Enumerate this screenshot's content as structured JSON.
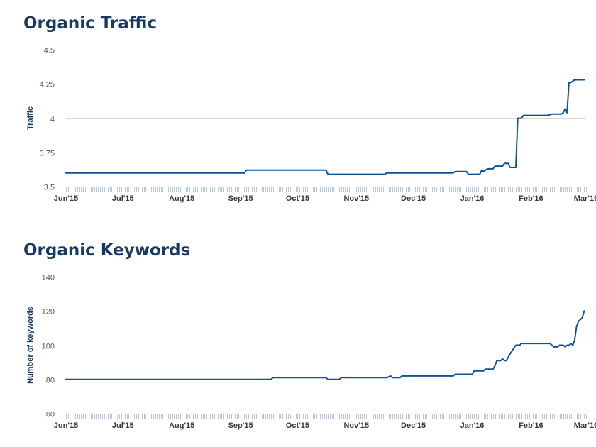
{
  "colors": {
    "title": "#163a63",
    "line": "#0b5394",
    "grid": "#d6d6d6"
  },
  "chart_data": [
    {
      "type": "line",
      "title": "Organic Traffic",
      "xlabel": "",
      "ylabel": "Traffic",
      "ylim": [
        3.5,
        4.5
      ],
      "yticks": [
        3.5,
        3.75,
        4,
        4.25,
        4.5
      ],
      "ytick_labels": [
        "3.5",
        "3.75",
        "4",
        "4.25",
        "4.5"
      ],
      "xlim": [
        "2015-06-01",
        "2016-03-01"
      ],
      "xticks": [
        {
          "date": "2015-06-01",
          "label": "Jun'15"
        },
        {
          "date": "2015-07-01",
          "label": "Jul'15"
        },
        {
          "date": "2015-08-01",
          "label": "Aug'15"
        },
        {
          "date": "2015-09-01",
          "label": "Sep'15"
        },
        {
          "date": "2015-10-01",
          "label": "Oct'15"
        },
        {
          "date": "2015-11-01",
          "label": "Nov'15"
        },
        {
          "date": "2015-12-01",
          "label": "Dec'15"
        },
        {
          "date": "2016-01-01",
          "label": "Jan'16"
        },
        {
          "date": "2016-02-01",
          "label": "Feb'16"
        },
        {
          "date": "2016-03-01",
          "label": "Mar'16"
        }
      ],
      "grid": true,
      "legend": "none",
      "series": [
        {
          "points": [
            [
              "2015-06-01",
              3.6
            ],
            [
              "2015-09-03",
              3.6
            ],
            [
              "2015-09-04",
              3.62
            ],
            [
              "2015-10-16",
              3.62
            ],
            [
              "2015-10-17",
              3.59
            ],
            [
              "2015-11-16",
              3.59
            ],
            [
              "2015-11-17",
              3.6
            ],
            [
              "2015-12-22",
              3.6
            ],
            [
              "2015-12-23",
              3.61
            ],
            [
              "2015-12-29",
              3.61
            ],
            [
              "2015-12-30",
              3.59
            ],
            [
              "2016-01-05",
              3.59
            ],
            [
              "2016-01-06",
              3.62
            ],
            [
              "2016-01-07",
              3.61
            ],
            [
              "2016-01-08",
              3.62
            ],
            [
              "2016-01-09",
              3.63
            ],
            [
              "2016-01-12",
              3.63
            ],
            [
              "2016-01-13",
              3.65
            ],
            [
              "2016-01-17",
              3.65
            ],
            [
              "2016-01-18",
              3.67
            ],
            [
              "2016-01-20",
              3.67
            ],
            [
              "2016-01-21",
              3.64
            ],
            [
              "2016-01-24",
              3.64
            ],
            [
              "2016-01-25",
              4.0
            ],
            [
              "2016-01-27",
              4.0
            ],
            [
              "2016-01-28",
              4.02
            ],
            [
              "2016-02-10",
              4.02
            ],
            [
              "2016-02-12",
              4.03
            ],
            [
              "2016-02-17",
              4.03
            ],
            [
              "2016-02-18",
              4.04
            ],
            [
              "2016-02-19",
              4.07
            ],
            [
              "2016-02-20",
              4.04
            ],
            [
              "2016-02-21",
              4.26
            ],
            [
              "2016-02-22",
              4.26
            ],
            [
              "2016-02-24",
              4.28
            ],
            [
              "2016-02-29",
              4.28
            ]
          ]
        }
      ]
    },
    {
      "type": "line",
      "title": "Organic Keywords",
      "xlabel": "",
      "ylabel": "Number of keywords",
      "ylim": [
        60,
        140
      ],
      "yticks": [
        60,
        80,
        100,
        120,
        140
      ],
      "ytick_labels": [
        "60",
        "80",
        "100",
        "120",
        "140"
      ],
      "xlim": [
        "2015-06-01",
        "2016-03-01"
      ],
      "xticks": [
        {
          "date": "2015-06-01",
          "label": "Jun'15"
        },
        {
          "date": "2015-07-01",
          "label": "Jul'15"
        },
        {
          "date": "2015-08-01",
          "label": "Aug'15"
        },
        {
          "date": "2015-09-01",
          "label": "Sep'15"
        },
        {
          "date": "2015-10-01",
          "label": "Oct'15"
        },
        {
          "date": "2015-11-01",
          "label": "Nov'15"
        },
        {
          "date": "2015-12-01",
          "label": "Dec'15"
        },
        {
          "date": "2016-01-01",
          "label": "Jan'16"
        },
        {
          "date": "2016-02-01",
          "label": "Feb'16"
        },
        {
          "date": "2016-03-01",
          "label": "Mar'16"
        }
      ],
      "grid": true,
      "legend": "none",
      "series": [
        {
          "points": [
            [
              "2015-06-01",
              80
            ],
            [
              "2015-09-17",
              80
            ],
            [
              "2015-09-18",
              81
            ],
            [
              "2015-10-16",
              81
            ],
            [
              "2015-10-17",
              80
            ],
            [
              "2015-10-23",
              80
            ],
            [
              "2015-10-24",
              81
            ],
            [
              "2015-11-17",
              81
            ],
            [
              "2015-11-19",
              82
            ],
            [
              "2015-11-20",
              81
            ],
            [
              "2015-11-24",
              81
            ],
            [
              "2015-11-25",
              82
            ],
            [
              "2015-12-22",
              82
            ],
            [
              "2015-12-23",
              83
            ],
            [
              "2016-01-01",
              83
            ],
            [
              "2016-01-02",
              85
            ],
            [
              "2016-01-07",
              85
            ],
            [
              "2016-01-08",
              86
            ],
            [
              "2016-01-12",
              86
            ],
            [
              "2016-01-13",
              88
            ],
            [
              "2016-01-14",
              91
            ],
            [
              "2016-01-16",
              91
            ],
            [
              "2016-01-17",
              92
            ],
            [
              "2016-01-18",
              91
            ],
            [
              "2016-01-19",
              91
            ],
            [
              "2016-01-21",
              95
            ],
            [
              "2016-01-24",
              100
            ],
            [
              "2016-01-26",
              100
            ],
            [
              "2016-01-27",
              101
            ],
            [
              "2016-02-11",
              101
            ],
            [
              "2016-02-13",
              99
            ],
            [
              "2016-02-15",
              99
            ],
            [
              "2016-02-16",
              100
            ],
            [
              "2016-02-18",
              100
            ],
            [
              "2016-02-19",
              99
            ],
            [
              "2016-02-20",
              100
            ],
            [
              "2016-02-21",
              100
            ],
            [
              "2016-02-22",
              101
            ],
            [
              "2016-02-23",
              100
            ],
            [
              "2016-02-24",
              103
            ],
            [
              "2016-02-25",
              111
            ],
            [
              "2016-02-26",
              114
            ],
            [
              "2016-02-27",
              115
            ],
            [
              "2016-02-28",
              116
            ],
            [
              "2016-02-29",
              120
            ]
          ]
        }
      ]
    }
  ]
}
